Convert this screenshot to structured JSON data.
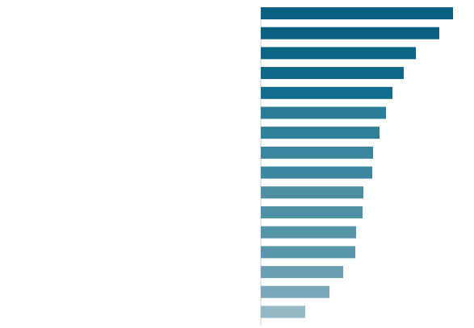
{
  "chart_data": {
    "type": "bar",
    "orientation": "horizontal",
    "categories": [
      "",
      "",
      "",
      "",
      "",
      "",
      "",
      "",
      "",
      "",
      "",
      "",
      "",
      "",
      "",
      ""
    ],
    "values": [
      null,
      null,
      null,
      null,
      null,
      null,
      null,
      null,
      null,
      null,
      null,
      null,
      null,
      null,
      null,
      null
    ],
    "bar_colors": [
      "#0a5f80",
      "#0b6182",
      "#0d6585",
      "#0f6888",
      "#126c8b",
      "#2c7e98",
      "#307f99",
      "#3a869e",
      "#3c87a0",
      "#4e8fa6",
      "#4f90a7",
      "#5594a9",
      "#5a97ac",
      "#6a9fb2",
      "#7ba8b9",
      "#93b8c6"
    ],
    "value_label_color": "#666666",
    "category_label_color": "#555555",
    "grid": false,
    "legend": "none"
  }
}
